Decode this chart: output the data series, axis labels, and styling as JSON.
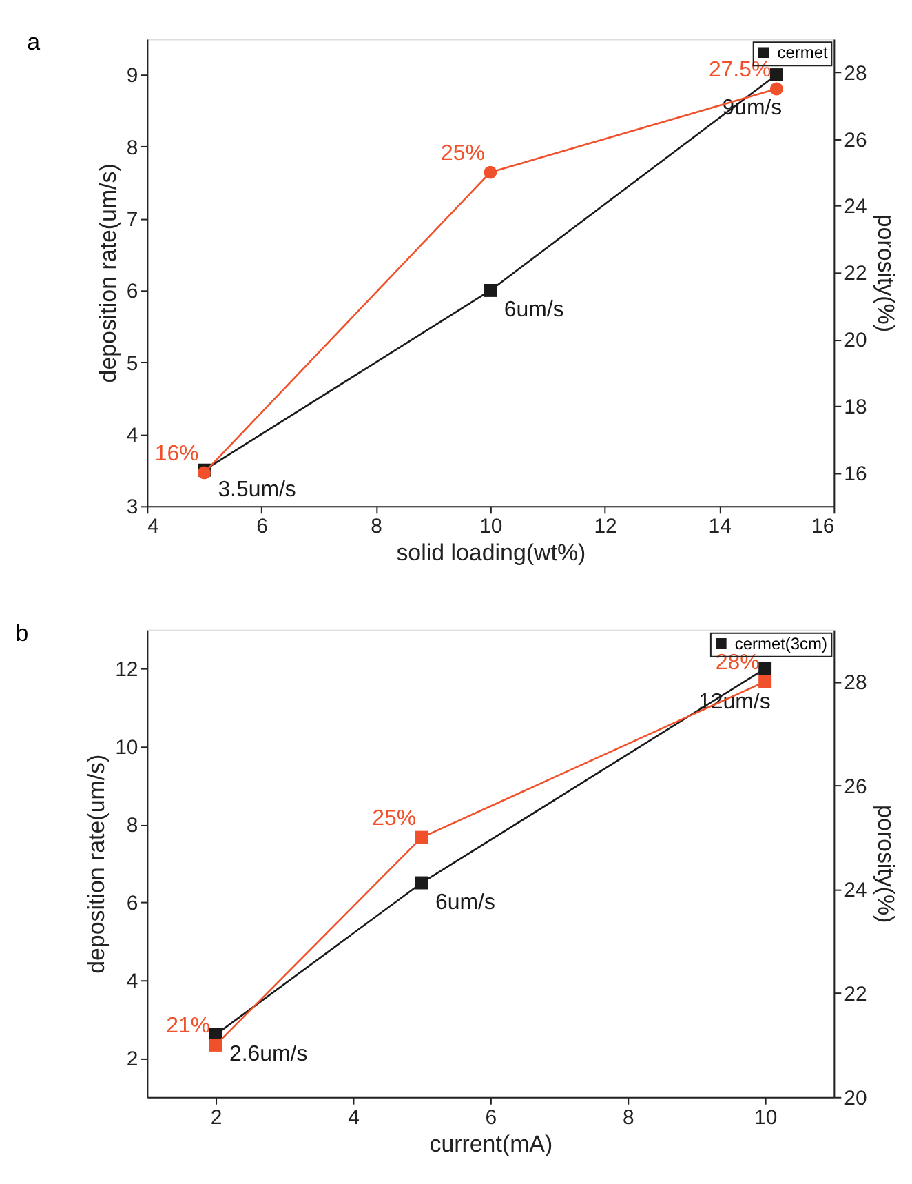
{
  "chart_data": [
    {
      "type": "line",
      "title": "a",
      "xlabel": "solid loading(wt%)",
      "ylabel": "deposition rate(um/s)",
      "y2label": "porosity(%)",
      "x": [
        5,
        10,
        15
      ],
      "xlim": [
        4,
        16
      ],
      "xticks": [
        4,
        6,
        8,
        10,
        12,
        14,
        16
      ],
      "ylim": [
        3,
        9.5
      ],
      "yticks": [
        3,
        4,
        5,
        6,
        7,
        8,
        9
      ],
      "y2lim": [
        15,
        29
      ],
      "y2ticks": [
        16,
        18,
        20,
        22,
        24,
        26,
        28
      ],
      "legend": "top right",
      "series": [
        {
          "name": "cermet",
          "color": "#1a1a1a",
          "marker": "square",
          "values": [
            3.5,
            6,
            9
          ],
          "value_labels": [
            "3.5um/s",
            "6um/s",
            "9um/s"
          ]
        },
        {
          "color": "#f0512a",
          "marker": "circle",
          "axis": "y2",
          "values": [
            16,
            25,
            27.5
          ],
          "value_labels": [
            "16%",
            "25%",
            "27.5%"
          ]
        }
      ]
    },
    {
      "type": "line",
      "title": "b",
      "xlabel": "current(mA)",
      "ylabel": "deposition rate(um/s)",
      "y2label": "porosity(%)",
      "x": [
        2,
        5,
        10
      ],
      "xlim": [
        1,
        11
      ],
      "xticks": [
        2,
        4,
        6,
        8,
        10
      ],
      "ylim": [
        1,
        13
      ],
      "yticks": [
        2,
        4,
        6,
        8,
        10,
        12
      ],
      "y2lim": [
        20,
        29
      ],
      "y2ticks": [
        20,
        22,
        24,
        26,
        28
      ],
      "legend": "top right",
      "series": [
        {
          "name": "cermet(3cm)",
          "color": "#1a1a1a",
          "marker": "square",
          "values": [
            2.6,
            6.5,
            12
          ],
          "value_labels": [
            "2.6um/s",
            "6um/s",
            "12um/s"
          ]
        },
        {
          "color": "#f0512a",
          "marker": "square",
          "axis": "y2",
          "values": [
            21,
            25,
            28
          ],
          "value_labels": [
            "21%",
            "25%",
            "28%"
          ]
        }
      ]
    }
  ]
}
